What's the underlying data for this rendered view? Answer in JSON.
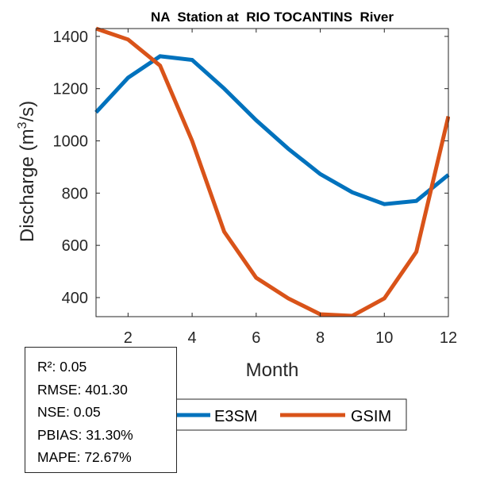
{
  "chart_data": {
    "type": "line",
    "title": "NA  Station at  RIO TOCANTINS  River",
    "xlabel": "Month",
    "ylabel": "Discharge (m^3/s)",
    "ylabel_parts": {
      "pre": "Discharge (m",
      "sup": "3",
      "post": "/s)"
    },
    "xlim": [
      1,
      12
    ],
    "ylim": [
      327,
      1430
    ],
    "xticks": [
      2,
      4,
      6,
      8,
      10,
      12
    ],
    "yticks": [
      400,
      600,
      800,
      1000,
      1200,
      1400
    ],
    "grid": false,
    "x": [
      1,
      2,
      3,
      4,
      5,
      6,
      7,
      8,
      9,
      10,
      11,
      12
    ],
    "series": [
      {
        "name": "E3SM",
        "color": "#0072BD",
        "values": [
          1109,
          1242,
          1324,
          1310,
          1200,
          1079,
          970,
          873,
          803,
          758,
          770,
          870
        ]
      },
      {
        "name": "GSIM",
        "color": "#D95319",
        "values": [
          1430,
          1388,
          1288,
          1000,
          652,
          476,
          397,
          336,
          330,
          397,
          575,
          1094
        ]
      }
    ],
    "legend": {
      "placement": "bottom-center",
      "entries": [
        "E3SM",
        "GSIM"
      ]
    }
  },
  "stats": {
    "lines": [
      "R²: 0.05",
      "RMSE: 401.30",
      "NSE: 0.05",
      "PBIAS: 31.30%",
      "MAPE: 72.67%"
    ]
  }
}
